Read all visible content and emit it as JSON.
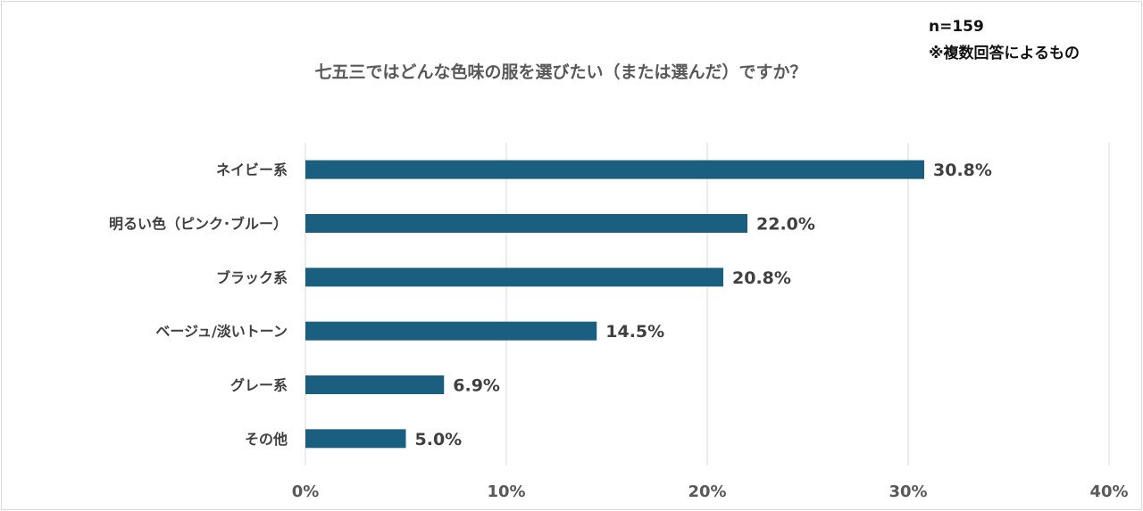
{
  "notes": {
    "sample": "n=159",
    "multiple": "※複数回答によるもの"
  },
  "chart_data": {
    "type": "bar",
    "orientation": "horizontal",
    "title": "七五三ではどんな色味の服を選びたい（または選んだ）ですか？",
    "categories": [
      "ネイビー系",
      "明るい色（ピンク･ブルー）",
      "ブラック系",
      "ベージュ/淡いトーン",
      "グレー系",
      "その他"
    ],
    "values": [
      30.8,
      22.0,
      20.8,
      14.5,
      6.9,
      5.0
    ],
    "data_labels": [
      "30.8%",
      "22.0%",
      "20.8%",
      "14.5%",
      "6.9%",
      "5.0%"
    ],
    "xlim": [
      0,
      40
    ],
    "x_ticks": [
      0,
      10,
      20,
      30,
      40
    ],
    "x_tick_labels": [
      "0%",
      "10%",
      "20%",
      "30%",
      "40%"
    ],
    "xlabel": "",
    "ylabel": "",
    "grid": true,
    "legend": "none",
    "bar_color": "#1a5e80",
    "gridline_color": "#d9d9d9"
  }
}
